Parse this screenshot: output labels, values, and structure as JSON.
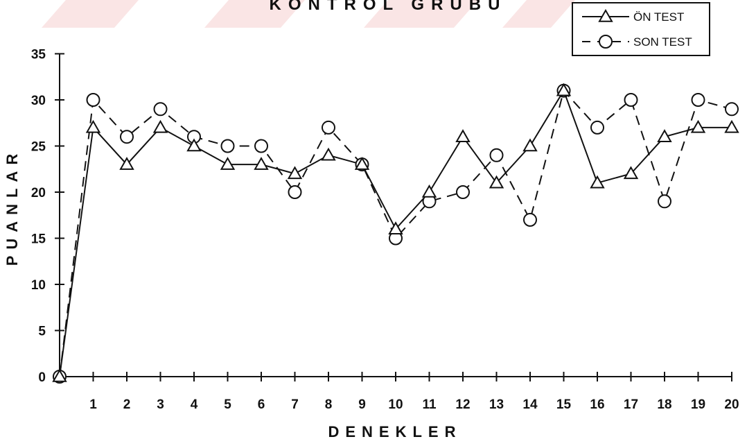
{
  "chart_data": {
    "type": "line",
    "title": "KONTROL GRUBU",
    "xlabel": "DENEKLER",
    "ylabel": "PUANLAR",
    "x": [
      0,
      1,
      2,
      3,
      4,
      5,
      6,
      7,
      8,
      9,
      10,
      11,
      12,
      13,
      14,
      15,
      16,
      17,
      18,
      19,
      20
    ],
    "x_tick_labels": [
      "1",
      "2",
      "3",
      "4",
      "5",
      "6",
      "7",
      "8",
      "9",
      "10",
      "11",
      "12",
      "13",
      "14",
      "15",
      "16",
      "17",
      "18",
      "19",
      "20"
    ],
    "y_tick_labels": [
      "0",
      "5",
      "10",
      "15",
      "20",
      "25",
      "30",
      "35"
    ],
    "xlim": [
      0,
      20
    ],
    "ylim": [
      0,
      35
    ],
    "grid": false,
    "legend_position": "top-right",
    "series": [
      {
        "name": "ÖN TEST",
        "marker": "triangle",
        "line_style": "solid",
        "values": [
          0,
          27,
          23,
          27,
          25,
          23,
          23,
          22,
          24,
          23,
          16,
          20,
          26,
          21,
          25,
          31,
          21,
          22,
          26,
          27,
          27
        ]
      },
      {
        "name": "SON TEST",
        "marker": "circle",
        "line_style": "dashed",
        "values": [
          0,
          30,
          26,
          29,
          26,
          25,
          25,
          20,
          27,
          23,
          15,
          19,
          20,
          24,
          17,
          31,
          27,
          30,
          19,
          30,
          29
        ]
      }
    ],
    "colors": {
      "ink": "#111111",
      "title_band": "#f5c6c6"
    }
  }
}
